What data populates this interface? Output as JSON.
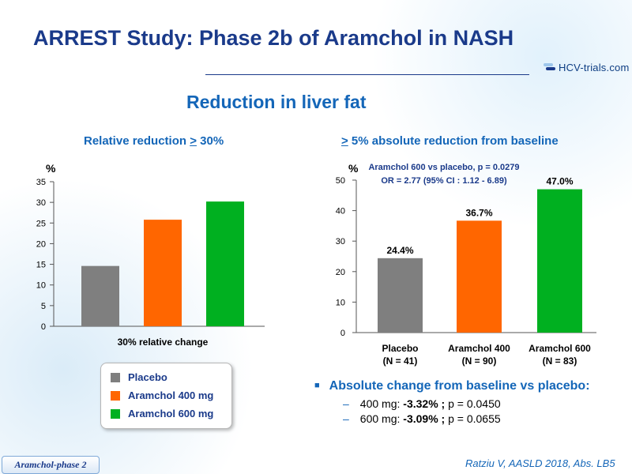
{
  "slide": {
    "title": "ARREST Study: Phase 2b of Aramchol in NASH",
    "subtitle": "Reduction in liver fat",
    "logo_text": "HCV-trials.com",
    "footer_tag": "Aramchol-phase 2",
    "citation": "Ratziu V, AASLD 2018, Abs. LB5"
  },
  "left_panel": {
    "heading_prefix": "Relative reduction ",
    "heading_ge": ">",
    "heading_suffix": " 30%"
  },
  "right_panel": {
    "heading_ge": ">",
    "heading_suffix": " 5% absolute reduction from baseline"
  },
  "legend": {
    "items": [
      {
        "label": "Placebo",
        "color": "#7f7f7f"
      },
      {
        "label": "Aramchol 400 mg",
        "color": "#ff6600"
      },
      {
        "label": "Aramchol 600 mg",
        "color": "#00b020"
      }
    ]
  },
  "absolute_change": {
    "heading": "Absolute change from baseline vs placebo:",
    "lines": [
      {
        "dose": "400 mg: ",
        "value": "-3.32% ;",
        "p": " p = 0.0450"
      },
      {
        "dose": "600 mg: ",
        "value": "-3.09% ;",
        "p": " p = 0.0655"
      }
    ]
  },
  "chart_data": [
    {
      "type": "bar",
      "title": "Relative reduction > 30%",
      "ylabel": "%",
      "xlabel": "30% relative change",
      "ylim": [
        0,
        35
      ],
      "yticks": [
        0,
        5,
        10,
        15,
        20,
        25,
        30,
        35
      ],
      "series": [
        {
          "name": "Placebo",
          "values": [
            14.6
          ],
          "color": "#7f7f7f"
        },
        {
          "name": "Aramchol 400 mg",
          "values": [
            25.8
          ],
          "color": "#ff6600"
        },
        {
          "name": "Aramchol 600 mg",
          "values": [
            30.2
          ],
          "color": "#00b020"
        }
      ]
    },
    {
      "type": "bar",
      "title": "> 5% absolute reduction from baseline",
      "ylabel": "%",
      "ylim": [
        0,
        50
      ],
      "yticks": [
        0,
        10,
        20,
        30,
        40,
        50
      ],
      "categories": [
        [
          "Placebo",
          "(N = 41)"
        ],
        [
          "Aramchol 400",
          "(N = 90)"
        ],
        [
          "Aramchol 600",
          "(N = 83)"
        ]
      ],
      "values": [
        24.4,
        36.7,
        47.0
      ],
      "labels": [
        "24.4%",
        "36.7%",
        "47.0%"
      ],
      "colors": [
        "#7f7f7f",
        "#ff6600",
        "#00b020"
      ],
      "annotation": [
        "Aramchol 600 vs placebo, p = 0.0279",
        "OR = 2.77 (95% CI : 1.12 - 6.89)"
      ]
    }
  ]
}
